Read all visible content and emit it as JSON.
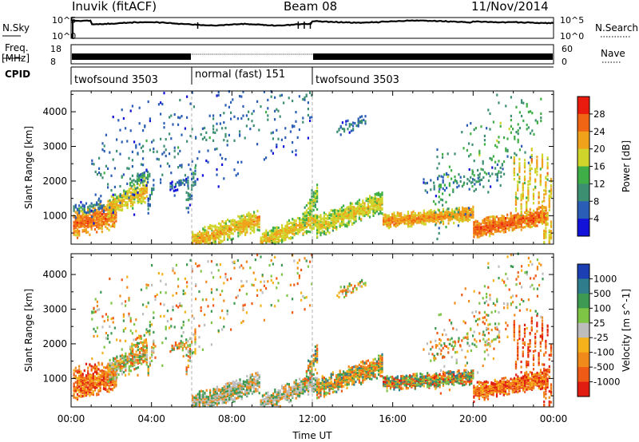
{
  "header": {
    "title": "Inuvik (fitACF)",
    "beam": "Beam 08",
    "date": "11/Nov/2014"
  },
  "panels": {
    "nsky_label": "N.Sky",
    "nsearch_label": "N.Search",
    "nsky_ticks": [
      "10^5",
      "10^0"
    ],
    "freq_label_1": "Freq.",
    "freq_label_2": "[MHz]",
    "freq_ticks": [
      "18",
      "8"
    ],
    "nave_label": "Nave",
    "nave_ticks": [
      "60",
      "0"
    ],
    "cpid_label": "CPID",
    "cpid_segments": [
      {
        "name": "twofsound 3503",
        "start_hour": 0,
        "end_hour": 6
      },
      {
        "name": "normal (fast) 151",
        "start_hour": 6,
        "end_hour": 12
      },
      {
        "name": "twofsound 3503",
        "start_hour": 12,
        "end_hour": 24
      }
    ]
  },
  "chart_data": [
    {
      "type": "heatmap",
      "quantity": "Power",
      "ylabel": "Slant Range [km]",
      "xlabel": "Time UT",
      "colorbar_label": "Power [dB]",
      "xlim": [
        0,
        24
      ],
      "ylim": [
        180,
        4600
      ],
      "x_ticks": [
        "00:00",
        "04:00",
        "08:00",
        "12:00",
        "16:00",
        "20:00",
        "00:00"
      ],
      "y_ticks": [
        1000,
        2000,
        3000,
        4000
      ],
      "colorbar_ticks": [
        "4",
        "8",
        "12",
        "16",
        "20",
        "24",
        "28"
      ],
      "colorbar_range": [
        0,
        32
      ],
      "colorbar_colors": [
        "#1212d8",
        "#2a5db5",
        "#3d8f72",
        "#3fae46",
        "#cfd52a",
        "#f0a21a",
        "#f06514",
        "#e81b0e"
      ]
    },
    {
      "type": "heatmap",
      "quantity": "Velocity",
      "ylabel": "Slant Range [km]",
      "xlabel": "Time UT",
      "colorbar_label": "Velocity [m s^-1]",
      "xlim": [
        0,
        24
      ],
      "ylim": [
        180,
        4600
      ],
      "x_ticks": [
        "00:00",
        "04:00",
        "08:00",
        "12:00",
        "16:00",
        "20:00",
        "00:00"
      ],
      "y_ticks": [
        1000,
        2000,
        3000,
        4000
      ],
      "colorbar_ticks": [
        "1000",
        "500",
        "100",
        "25",
        "-25",
        "-100",
        "-500",
        "-1000"
      ],
      "colorbar_colors": [
        "#1c3fb4",
        "#2f7c8c",
        "#3d9a52",
        "#7ec445",
        "#bdbdbd",
        "#f5b21b",
        "#f08a1a",
        "#ef5a16",
        "#e11c10"
      ]
    }
  ],
  "colors": {
    "ground_scatter": "#b7b7b7",
    "frame": "#000000"
  },
  "time_axis_label": "Time UT"
}
